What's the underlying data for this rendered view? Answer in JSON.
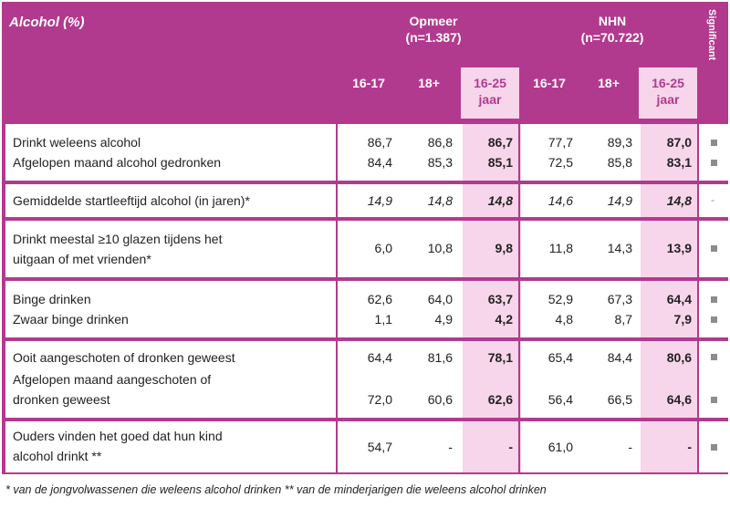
{
  "header": {
    "title": "Alcohol (%)",
    "groups": [
      {
        "name": "Opmeer",
        "n": "(n=1.387)"
      },
      {
        "name": "NHN",
        "n": "(n=70.722)"
      }
    ],
    "significant": "Significant",
    "cols": [
      "16-17",
      "18+",
      "16-25",
      "16-17",
      "18+",
      "16-25"
    ],
    "col_sub": "jaar"
  },
  "rows": [
    {
      "label": "Drinkt weleens alcohol",
      "values": [
        "86,7",
        "86,8",
        "86,7",
        "77,7",
        "89,3",
        "87,0"
      ],
      "sig": "sq"
    },
    {
      "label": "Afgelopen maand alcohol gedronken",
      "values": [
        "84,4",
        "85,3",
        "85,1",
        "72,5",
        "85,8",
        "83,1"
      ],
      "sig": "sq"
    },
    {
      "label": "Gemiddelde startleeftijd alcohol (in jaren)*",
      "values": [
        "14,9",
        "14,8",
        "14,8",
        "14,6",
        "14,9",
        "14,8"
      ],
      "sig": "-"
    },
    {
      "label1": "Drinkt meestal ≥10 glazen tijdens het",
      "label2": "uitgaan of met vrienden*",
      "values": [
        "6,0",
        "10,8",
        "9,8",
        "11,8",
        "14,3",
        "13,9"
      ],
      "sig": "sq"
    },
    {
      "label": "Binge drinken",
      "values": [
        "62,6",
        "64,0",
        "63,7",
        "52,9",
        "67,3",
        "64,4"
      ],
      "sig": "sq"
    },
    {
      "label": "Zwaar binge drinken",
      "values": [
        "1,1",
        "4,9",
        "4,2",
        "4,8",
        "8,7",
        "7,9"
      ],
      "sig": "sq"
    },
    {
      "label": "Ooit aangeschoten of dronken geweest",
      "values": [
        "64,4",
        "81,6",
        "78,1",
        "65,4",
        "84,4",
        "80,6"
      ],
      "sig": "sq"
    },
    {
      "label1": "Afgelopen maand aangeschoten of",
      "label2": "dronken geweest",
      "values": [
        "72,0",
        "60,6",
        "62,6",
        "56,4",
        "66,5",
        "64,6"
      ],
      "sig": "sq"
    },
    {
      "label1": "Ouders vinden het goed dat hun kind",
      "label2": "alcohol drinkt **",
      "values": [
        "54,7",
        "-",
        "-",
        "61,0",
        "-",
        "-"
      ],
      "sig": "sq"
    }
  ],
  "footnote": "* van de jongvolwassenen die weleens alcohol drinken ** van de minderjarigen die weleens alcohol drinken"
}
